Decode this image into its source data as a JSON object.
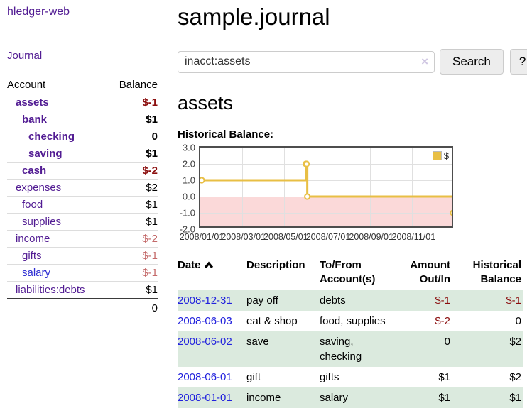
{
  "sidebar": {
    "title": "hledger-web",
    "nav": {
      "journal": "Journal"
    },
    "accounts": {
      "header": {
        "account": "Account",
        "balance": "Balance"
      },
      "rows": [
        {
          "name": "assets",
          "balance": "$-1",
          "level": 1,
          "bold": true,
          "balance_color": "dark-red",
          "link_color": "purple"
        },
        {
          "name": "bank",
          "balance": "$1",
          "level": 2,
          "bold": true,
          "balance_color": "default",
          "link_color": "purple"
        },
        {
          "name": "checking",
          "balance": "0",
          "level": 3,
          "bold": true,
          "balance_color": "default",
          "link_color": "purple"
        },
        {
          "name": "saving",
          "balance": "$1",
          "level": 3,
          "bold": true,
          "balance_color": "default",
          "link_color": "purple"
        },
        {
          "name": "cash",
          "balance": "$-2",
          "level": 2,
          "bold": true,
          "balance_color": "dark-red",
          "link_color": "purple"
        },
        {
          "name": "expenses",
          "balance": "$2",
          "level": 1,
          "bold": false,
          "balance_color": "default",
          "link_color": "purple"
        },
        {
          "name": "food",
          "balance": "$1",
          "level": 2,
          "bold": false,
          "balance_color": "default",
          "link_color": "purple"
        },
        {
          "name": "supplies",
          "balance": "$1",
          "level": 2,
          "bold": false,
          "balance_color": "default",
          "link_color": "purple"
        },
        {
          "name": "income",
          "balance": "$-2",
          "level": 1,
          "bold": false,
          "balance_color": "light-red",
          "link_color": "purple"
        },
        {
          "name": "gifts",
          "balance": "$-1",
          "level": 2,
          "bold": false,
          "balance_color": "light-red",
          "link_color": "purple"
        },
        {
          "name": "salary",
          "balance": "$-1",
          "level": 2,
          "bold": false,
          "balance_color": "light-red",
          "link_color": "blue"
        },
        {
          "name": "liabilities:debts",
          "balance": "$1",
          "level": 1,
          "bold": false,
          "balance_color": "default",
          "link_color": "purple"
        }
      ],
      "total": "0"
    }
  },
  "main": {
    "title": "sample.journal",
    "search": {
      "value": "inacct:assets",
      "clear_icon": "×",
      "button": "Search",
      "help_button": "?"
    },
    "account_heading": "assets",
    "chart_heading": "Historical Balance:"
  },
  "chart_data": {
    "type": "line",
    "step": true,
    "title": "Historical Balance:",
    "x_start": "2008-01-01",
    "x_end": "2008-12-31",
    "ylim": [
      -2,
      3
    ],
    "yticks": [
      "3.0",
      "2.0",
      "1.0",
      "0.0",
      "-1.0",
      "-2.0"
    ],
    "xticks": [
      "2008/01/01",
      "2008/03/01",
      "2008/05/01",
      "2008/07/01",
      "2008/09/01",
      "2008/11/01"
    ],
    "series": [
      {
        "name": "$",
        "color": "#e8bf45",
        "points": [
          [
            "2008-01-01",
            1
          ],
          [
            "2008-06-01",
            2
          ],
          [
            "2008-06-02",
            2
          ],
          [
            "2008-06-03",
            0
          ],
          [
            "2008-12-31",
            -1
          ]
        ]
      }
    ],
    "legend_position": "top-right",
    "grid": true,
    "negative_region_color": "#fbd9d9",
    "zero_line_color": "#8b0000"
  },
  "register": {
    "headers": [
      {
        "lines": [
          "Date"
        ],
        "align": "left",
        "sort": "asc"
      },
      {
        "lines": [
          "Description"
        ],
        "align": "left"
      },
      {
        "lines": [
          "To/From",
          "Account(s)"
        ],
        "align": "left"
      },
      {
        "lines": [
          "Amount",
          "Out/In"
        ],
        "align": "right"
      },
      {
        "lines": [
          "Historical",
          "Balance"
        ],
        "align": "right"
      }
    ],
    "rows": [
      {
        "date": "2008-12-31",
        "description": "pay off",
        "accounts": "debts",
        "amount": "$-1",
        "amount_negative": true,
        "balance": "$-1",
        "balance_negative": true
      },
      {
        "date": "2008-06-03",
        "description": "eat & shop",
        "accounts": "food, supplies",
        "amount": "$-2",
        "amount_negative": true,
        "balance": "0",
        "balance_negative": false
      },
      {
        "date": "2008-06-02",
        "description": "save",
        "accounts": "saving, checking",
        "amount": "0",
        "amount_negative": false,
        "balance": "$2",
        "balance_negative": false
      },
      {
        "date": "2008-06-01",
        "description": "gift",
        "accounts": "gifts",
        "amount": "$1",
        "amount_negative": false,
        "balance": "$2",
        "balance_negative": false
      },
      {
        "date": "2008-01-01",
        "description": "income",
        "accounts": "salary",
        "amount": "$1",
        "amount_negative": false,
        "balance": "$1",
        "balance_negative": false
      }
    ]
  },
  "colors": {
    "link_purple": "#521c93",
    "link_blue": "#2d2dd2",
    "date_blue": "#2222dd",
    "negative_dark": "#8b0e0e",
    "negative_light": "#c46a6a",
    "row_stripe_green": "#dbeade",
    "chart_line_gold": "#e8bf45",
    "chart_negative_pink": "#fbd9d9",
    "chart_zero_red": "#8b0000"
  }
}
